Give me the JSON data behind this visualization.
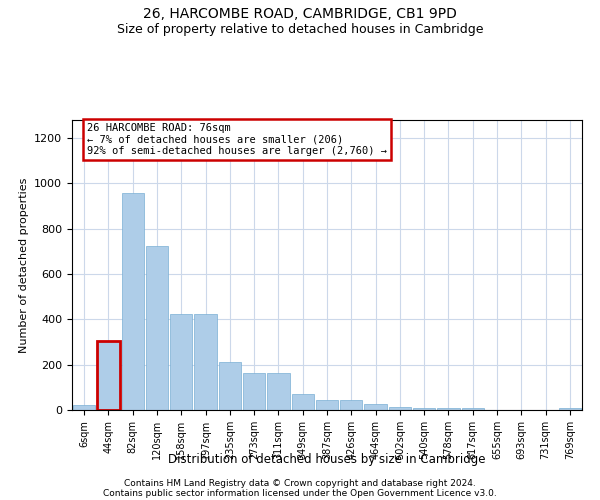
{
  "title1": "26, HARCOMBE ROAD, CAMBRIDGE, CB1 9PD",
  "title2": "Size of property relative to detached houses in Cambridge",
  "xlabel": "Distribution of detached houses by size in Cambridge",
  "ylabel": "Number of detached properties",
  "footer1": "Contains HM Land Registry data © Crown copyright and database right 2024.",
  "footer2": "Contains public sector information licensed under the Open Government Licence v3.0.",
  "annotation_title": "26 HARCOMBE ROAD: 76sqm",
  "annotation_line2": "← 7% of detached houses are smaller (206)",
  "annotation_line3": "92% of semi-detached houses are larger (2,760) →",
  "bar_values": [
    20,
    305,
    960,
    725,
    425,
    425,
    210,
    165,
    165,
    70,
    45,
    45,
    28,
    15,
    10,
    10,
    10,
    0,
    0,
    0,
    10
  ],
  "bin_labels": [
    "6sqm",
    "44sqm",
    "82sqm",
    "120sqm",
    "158sqm",
    "197sqm",
    "235sqm",
    "273sqm",
    "311sqm",
    "349sqm",
    "387sqm",
    "426sqm",
    "464sqm",
    "502sqm",
    "540sqm",
    "578sqm",
    "617sqm",
    "655sqm",
    "693sqm",
    "731sqm",
    "769sqm"
  ],
  "highlight_bar_index": 1,
  "bar_color": "#aecde8",
  "bar_edge_color": "#7aafd4",
  "highlight_bar_edge_color": "#cc0000",
  "annotation_box_color": "#ffffff",
  "annotation_box_edge": "#cc0000",
  "bg_color": "#ffffff",
  "grid_color": "#ccd8ea",
  "ylim": [
    0,
    1280
  ],
  "yticks": [
    0,
    200,
    400,
    600,
    800,
    1000,
    1200
  ]
}
